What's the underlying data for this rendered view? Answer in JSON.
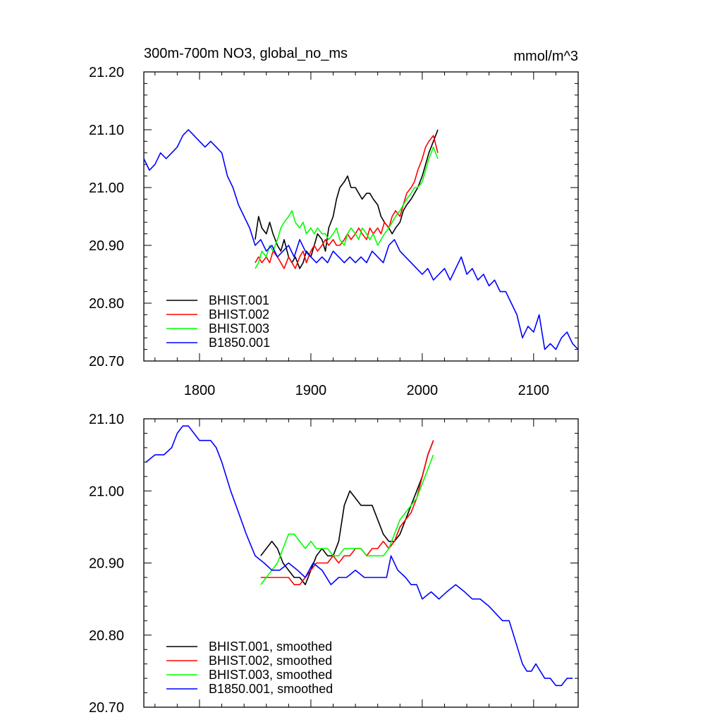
{
  "chart_data": [
    {
      "type": "line",
      "title": "300m-700m NO3, global_no_ms",
      "units": "mmol/m^3",
      "xlim": [
        1750,
        2140
      ],
      "ylim": [
        20.7,
        21.2
      ],
      "x_ticks": [
        "1800",
        "1900",
        "2000",
        "2100"
      ],
      "y_ticks": [
        "21.20",
        "21.10",
        "21.00",
        "20.90",
        "20.80",
        "20.70"
      ],
      "legend_position": "bottom-left",
      "series": [
        {
          "name": "BHIST.001",
          "color": "#000000",
          "x": [
            1850,
            1853,
            1856,
            1860,
            1863,
            1866,
            1870,
            1873,
            1876,
            1880,
            1883,
            1886,
            1890,
            1893,
            1896,
            1900,
            1903,
            1906,
            1910,
            1913,
            1916,
            1920,
            1923,
            1926,
            1930,
            1933,
            1936,
            1940,
            1943,
            1946,
            1950,
            1953,
            1956,
            1960,
            1963,
            1966,
            1970,
            1973,
            1976,
            1980,
            1983,
            1986,
            1990,
            1993,
            1996,
            2000,
            2003,
            2006,
            2010,
            2014
          ],
          "y": [
            20.91,
            20.95,
            20.93,
            20.92,
            20.94,
            20.92,
            20.9,
            20.89,
            20.91,
            20.88,
            20.87,
            20.88,
            20.86,
            20.87,
            20.89,
            20.88,
            20.9,
            20.92,
            20.91,
            20.89,
            20.93,
            20.95,
            20.98,
            21.0,
            21.01,
            21.02,
            21.0,
            21.0,
            20.99,
            20.98,
            20.99,
            20.99,
            20.98,
            20.97,
            20.95,
            20.94,
            20.93,
            20.92,
            20.93,
            20.94,
            20.96,
            20.97,
            20.98,
            20.99,
            21.0,
            21.02,
            21.04,
            21.06,
            21.08,
            21.1
          ]
        },
        {
          "name": "BHIST.002",
          "color": "#ff0000",
          "x": [
            1850,
            1853,
            1856,
            1860,
            1863,
            1866,
            1870,
            1873,
            1876,
            1880,
            1883,
            1886,
            1890,
            1893,
            1896,
            1900,
            1903,
            1906,
            1910,
            1913,
            1916,
            1920,
            1923,
            1926,
            1930,
            1933,
            1936,
            1940,
            1943,
            1946,
            1950,
            1953,
            1956,
            1960,
            1963,
            1966,
            1970,
            1973,
            1976,
            1980,
            1983,
            1986,
            1990,
            1993,
            1996,
            2000,
            2003,
            2006,
            2010,
            2014
          ],
          "y": [
            20.87,
            20.88,
            20.87,
            20.88,
            20.87,
            20.89,
            20.88,
            20.87,
            20.86,
            20.88,
            20.87,
            20.86,
            20.88,
            20.89,
            20.87,
            20.89,
            20.9,
            20.89,
            20.9,
            20.91,
            20.9,
            20.91,
            20.9,
            20.9,
            20.91,
            20.92,
            20.91,
            20.92,
            20.93,
            20.92,
            20.91,
            20.93,
            20.92,
            20.93,
            20.92,
            20.94,
            20.93,
            20.95,
            20.96,
            20.95,
            20.97,
            20.99,
            21.0,
            21.01,
            21.03,
            21.05,
            21.07,
            21.08,
            21.09,
            21.06
          ]
        },
        {
          "name": "BHIST.003",
          "color": "#00ff00",
          "x": [
            1850,
            1853,
            1856,
            1860,
            1863,
            1866,
            1870,
            1873,
            1876,
            1880,
            1883,
            1886,
            1890,
            1893,
            1896,
            1900,
            1903,
            1906,
            1910,
            1913,
            1916,
            1920,
            1923,
            1926,
            1930,
            1933,
            1936,
            1940,
            1943,
            1946,
            1950,
            1953,
            1956,
            1960,
            1963,
            1966,
            1970,
            1973,
            1976,
            1980,
            1983,
            1986,
            1990,
            1993,
            1996,
            2000,
            2003,
            2006,
            2010,
            2014
          ],
          "y": [
            20.86,
            20.87,
            20.89,
            20.88,
            20.9,
            20.89,
            20.91,
            20.93,
            20.94,
            20.95,
            20.96,
            20.94,
            20.93,
            20.94,
            20.92,
            20.93,
            20.92,
            20.93,
            20.92,
            20.92,
            20.91,
            20.92,
            20.93,
            20.91,
            20.9,
            20.92,
            20.93,
            20.92,
            20.91,
            20.93,
            20.92,
            20.91,
            20.92,
            20.9,
            20.91,
            20.92,
            20.93,
            20.94,
            20.95,
            20.96,
            20.97,
            20.98,
            20.99,
            21.0,
            21.0,
            21.01,
            21.03,
            21.05,
            21.07,
            21.05
          ]
        },
        {
          "name": "B1850.001",
          "color": "#0000ff",
          "x": [
            1750,
            1755,
            1760,
            1765,
            1770,
            1775,
            1780,
            1785,
            1790,
            1795,
            1800,
            1805,
            1810,
            1815,
            1820,
            1825,
            1830,
            1835,
            1840,
            1845,
            1850,
            1855,
            1860,
            1865,
            1870,
            1875,
            1880,
            1885,
            1890,
            1895,
            1900,
            1905,
            1910,
            1915,
            1920,
            1925,
            1930,
            1935,
            1940,
            1945,
            1950,
            1955,
            1960,
            1965,
            1970,
            1975,
            1980,
            1985,
            1990,
            1995,
            2000,
            2005,
            2010,
            2015,
            2020,
            2025,
            2030,
            2035,
            2040,
            2045,
            2050,
            2055,
            2060,
            2065,
            2070,
            2075,
            2080,
            2085,
            2090,
            2095,
            2100,
            2105,
            2110,
            2115,
            2120,
            2125,
            2130,
            2135,
            2140
          ],
          "y": [
            21.05,
            21.03,
            21.04,
            21.06,
            21.05,
            21.06,
            21.07,
            21.09,
            21.1,
            21.09,
            21.08,
            21.07,
            21.08,
            21.07,
            21.06,
            21.02,
            21.0,
            20.97,
            20.95,
            20.93,
            20.9,
            20.91,
            20.89,
            20.9,
            20.88,
            20.89,
            20.9,
            20.88,
            20.91,
            20.89,
            20.88,
            20.87,
            20.88,
            20.87,
            20.89,
            20.88,
            20.87,
            20.88,
            20.87,
            20.88,
            20.87,
            20.89,
            20.88,
            20.87,
            20.9,
            20.91,
            20.89,
            20.88,
            20.87,
            20.86,
            20.85,
            20.86,
            20.84,
            20.85,
            20.86,
            20.84,
            20.86,
            20.88,
            20.85,
            20.86,
            20.84,
            20.85,
            20.83,
            20.84,
            20.82,
            20.82,
            20.8,
            20.78,
            20.74,
            20.76,
            20.75,
            20.78,
            20.72,
            20.73,
            20.72,
            20.74,
            20.75,
            20.73,
            20.72
          ]
        }
      ]
    },
    {
      "type": "line",
      "title": "",
      "xlim": [
        1750,
        2140
      ],
      "ylim": [
        20.7,
        21.1
      ],
      "x_ticks": [],
      "y_ticks": [
        "21.10",
        "21.00",
        "20.90",
        "20.80",
        "20.70"
      ],
      "legend_position": "bottom-left",
      "series": [
        {
          "name": "BHIST.001, smoothed",
          "color": "#000000",
          "x": [
            1855,
            1860,
            1865,
            1870,
            1875,
            1880,
            1885,
            1890,
            1895,
            1900,
            1905,
            1910,
            1915,
            1920,
            1925,
            1930,
            1935,
            1940,
            1945,
            1950,
            1955,
            1960,
            1965,
            1970,
            1975,
            1980,
            1985,
            1990,
            1995,
            2000,
            2005,
            2010
          ],
          "y": [
            20.91,
            20.92,
            20.93,
            20.92,
            20.9,
            20.89,
            20.88,
            20.88,
            20.87,
            20.89,
            20.91,
            20.92,
            20.91,
            20.91,
            20.93,
            20.98,
            21.0,
            20.99,
            20.98,
            20.98,
            20.98,
            20.96,
            20.94,
            20.93,
            20.93,
            20.94,
            20.96,
            20.98,
            21.0,
            21.02,
            21.05,
            21.07
          ]
        },
        {
          "name": "BHIST.002, smoothed",
          "color": "#ff0000",
          "x": [
            1855,
            1860,
            1865,
            1870,
            1875,
            1880,
            1885,
            1890,
            1895,
            1900,
            1905,
            1910,
            1915,
            1920,
            1925,
            1930,
            1935,
            1940,
            1945,
            1950,
            1955,
            1960,
            1965,
            1970,
            1975,
            1980,
            1985,
            1990,
            1995,
            2000,
            2005,
            2010
          ],
          "y": [
            20.88,
            20.88,
            20.88,
            20.88,
            20.88,
            20.88,
            20.87,
            20.87,
            20.88,
            20.89,
            20.9,
            20.9,
            20.9,
            20.91,
            20.9,
            20.91,
            20.91,
            20.92,
            20.92,
            20.91,
            20.92,
            20.92,
            20.93,
            20.92,
            20.93,
            20.95,
            20.96,
            20.97,
            20.99,
            21.02,
            21.05,
            21.07
          ]
        },
        {
          "name": "BHIST.003, smoothed",
          "color": "#00ff00",
          "x": [
            1855,
            1860,
            1865,
            1870,
            1875,
            1880,
            1885,
            1890,
            1895,
            1900,
            1905,
            1910,
            1915,
            1920,
            1925,
            1930,
            1935,
            1940,
            1945,
            1950,
            1955,
            1960,
            1965,
            1970,
            1975,
            1980,
            1985,
            1990,
            1995,
            2000,
            2005,
            2010
          ],
          "y": [
            20.87,
            20.88,
            20.89,
            20.9,
            20.92,
            20.94,
            20.94,
            20.93,
            20.92,
            20.93,
            20.92,
            20.92,
            20.92,
            20.91,
            20.91,
            20.92,
            20.92,
            20.92,
            20.92,
            20.91,
            20.91,
            20.91,
            20.91,
            20.92,
            20.94,
            20.96,
            20.97,
            20.98,
            20.99,
            21.01,
            21.03,
            21.05
          ]
        },
        {
          "name": "B1850.001, smoothed",
          "color": "#0000ff",
          "x": [
            1752,
            1760,
            1768,
            1775,
            1780,
            1785,
            1790,
            1795,
            1800,
            1805,
            1810,
            1815,
            1820,
            1828,
            1835,
            1842,
            1850,
            1858,
            1865,
            1872,
            1880,
            1888,
            1895,
            1902,
            1910,
            1918,
            1925,
            1932,
            1940,
            1948,
            1955,
            1962,
            1968,
            1972,
            1978,
            1985,
            1990,
            1995,
            2000,
            2008,
            2015,
            2022,
            2030,
            2038,
            2045,
            2052,
            2060,
            2066,
            2072,
            2078,
            2082,
            2086,
            2090,
            2094,
            2098,
            2102,
            2106,
            2110,
            2115,
            2120,
            2125,
            2130,
            2135
          ],
          "y": [
            21.04,
            21.05,
            21.05,
            21.06,
            21.08,
            21.09,
            21.09,
            21.08,
            21.07,
            21.07,
            21.07,
            21.06,
            21.04,
            21.0,
            20.97,
            20.94,
            20.91,
            20.9,
            20.89,
            20.89,
            20.9,
            20.89,
            20.88,
            20.9,
            20.89,
            20.87,
            20.88,
            20.88,
            20.89,
            20.88,
            20.88,
            20.88,
            20.88,
            20.91,
            20.89,
            20.88,
            20.87,
            20.87,
            20.85,
            20.86,
            20.85,
            20.86,
            20.87,
            20.86,
            20.85,
            20.85,
            20.84,
            20.83,
            20.82,
            20.82,
            20.8,
            20.78,
            20.76,
            20.75,
            20.75,
            20.76,
            20.75,
            20.74,
            20.74,
            20.73,
            20.73,
            20.74,
            20.74
          ]
        }
      ]
    }
  ]
}
